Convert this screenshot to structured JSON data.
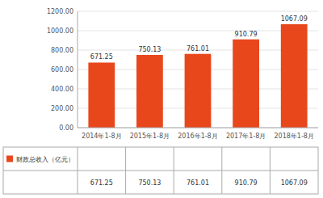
{
  "chart_data": {
    "type": "bar",
    "categories": [
      "2014年1-8月",
      "2015年1-8月",
      "2016年1-8月",
      "2017年1-8月",
      "2018年1-8月"
    ],
    "series": [
      {
        "name": "财政总收入（亿元）",
        "color": "#E8471C",
        "values": [
          671.25,
          750.13,
          761.01,
          910.79,
          1067.09
        ]
      }
    ],
    "ylim": [
      0,
      1200
    ],
    "yticks": [
      {
        "value": 0,
        "label": "0.00"
      },
      {
        "value": 200,
        "label": "200.00"
      },
      {
        "value": 400,
        "label": "400.00"
      },
      {
        "value": 600,
        "label": "600.00"
      },
      {
        "value": 800,
        "label": "800.00"
      },
      {
        "value": 1000,
        "label": "1000.00"
      },
      {
        "value": 1200,
        "label": "1200.00"
      }
    ],
    "grid": true,
    "data_labels": true,
    "legend": "bottom"
  }
}
